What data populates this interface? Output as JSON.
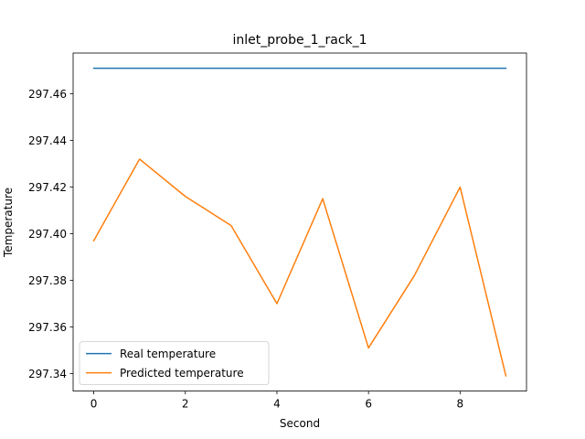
{
  "chart_data": {
    "type": "line",
    "title": "inlet_probe_1_rack_1",
    "xlabel": "Second",
    "ylabel": "Temperature",
    "x": [
      0,
      1,
      2,
      3,
      4,
      5,
      6,
      7,
      8,
      9
    ],
    "xlim": [
      -0.45,
      9.45
    ],
    "ylim": [
      297.3325,
      297.4775
    ],
    "xticks": [
      0,
      2,
      4,
      6,
      8
    ],
    "xtick_labels": [
      "0",
      "2",
      "4",
      "6",
      "8"
    ],
    "yticks": [
      297.34,
      297.36,
      297.38,
      297.4,
      297.42,
      297.44,
      297.46
    ],
    "ytick_labels": [
      "297.34",
      "297.36",
      "297.38",
      "297.40",
      "297.42",
      "297.44",
      "297.46"
    ],
    "grid": false,
    "legend_position": "lower-left",
    "series": [
      {
        "name": "Real temperature",
        "color": "#1f77b4",
        "values": [
          297.471,
          297.471,
          297.471,
          297.471,
          297.471,
          297.471,
          297.471,
          297.471,
          297.471,
          297.471
        ]
      },
      {
        "name": "Predicted temperature",
        "color": "#ff7f0e",
        "values": [
          297.397,
          297.432,
          297.416,
          297.4035,
          297.37,
          297.415,
          297.351,
          297.382,
          297.42,
          297.339
        ]
      }
    ]
  }
}
